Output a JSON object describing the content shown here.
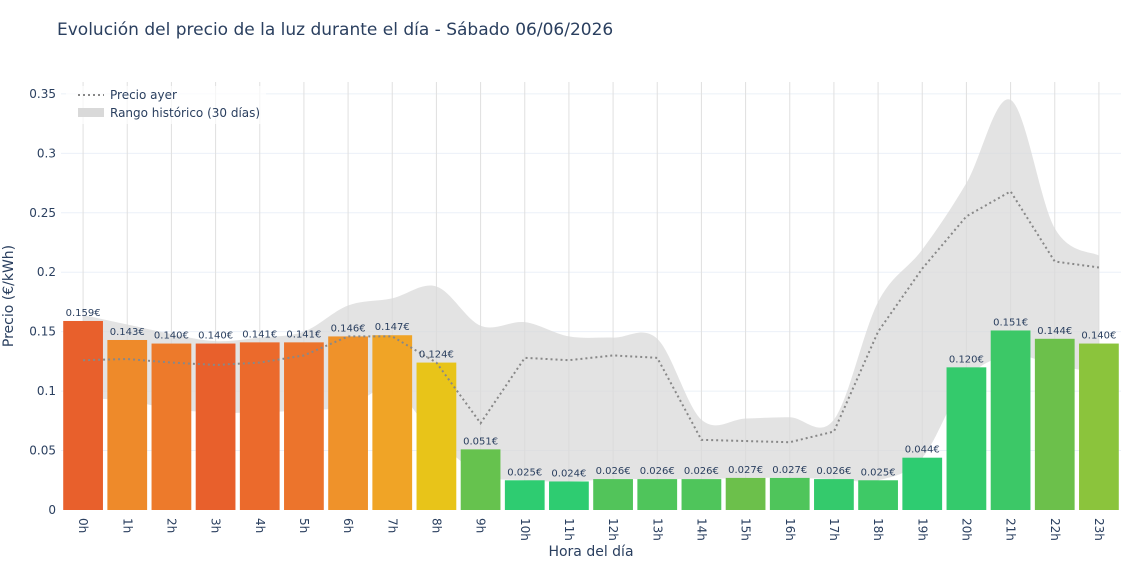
{
  "chart_data": {
    "type": "bar",
    "title": "Evolución del precio de la luz durante el día - Sábado 06/06/2026",
    "xlabel": "Hora del día",
    "ylabel": "Precio (€/kWh)",
    "ylim": [
      0,
      0.36
    ],
    "yticks": [
      0,
      0.05,
      0.1,
      0.15,
      0.2,
      0.25,
      0.3,
      0.35
    ],
    "ytick_labels": [
      "0",
      "0.05",
      "0.1",
      "0.15",
      "0.2",
      "0.25",
      "0.3",
      "0.35"
    ],
    "grid": true,
    "legend_position": "top-left",
    "categories": [
      "0h",
      "1h",
      "2h",
      "3h",
      "4h",
      "5h",
      "6h",
      "7h",
      "8h",
      "9h",
      "10h",
      "11h",
      "12h",
      "13h",
      "14h",
      "15h",
      "16h",
      "17h",
      "18h",
      "19h",
      "20h",
      "21h",
      "22h",
      "23h"
    ],
    "values": [
      0.159,
      0.143,
      0.14,
      0.14,
      0.141,
      0.141,
      0.146,
      0.147,
      0.124,
      0.051,
      0.025,
      0.024,
      0.026,
      0.026,
      0.026,
      0.027,
      0.027,
      0.026,
      0.025,
      0.044,
      0.12,
      0.151,
      0.144,
      0.14
    ],
    "value_labels": [
      "0.159€",
      "0.143€",
      "0.140€",
      "0.140€",
      "0.141€",
      "0.141€",
      "0.146€",
      "0.147€",
      "0.124€",
      "0.051€",
      "0.025€",
      "0.024€",
      "0.026€",
      "0.026€",
      "0.026€",
      "0.027€",
      "0.027€",
      "0.026€",
      "0.025€",
      "0.044€",
      "0.120€",
      "0.151€",
      "0.144€",
      "0.140€"
    ],
    "bar_colors": [
      "#e8602c",
      "#ee8a2a",
      "#ed7a2b",
      "#e8602c",
      "#eb6a2c",
      "#ec742c",
      "#ef922a",
      "#f0a426",
      "#e8c419",
      "#66c24e",
      "#2ecc71",
      "#2ecc71",
      "#52c45a",
      "#4fc55b",
      "#4fc55b",
      "#6cc04b",
      "#4fc55b",
      "#34ca6c",
      "#3ec966",
      "#2ecc71",
      "#34ca6c",
      "#3cc867",
      "#6cc04b",
      "#8bc43c"
    ],
    "series": [
      {
        "name": "Precio ayer",
        "style": "dotted",
        "color": "#888888",
        "values": [
          0.126,
          0.127,
          0.124,
          0.122,
          0.124,
          0.13,
          0.146,
          0.146,
          0.124,
          0.073,
          0.128,
          0.126,
          0.13,
          0.128,
          0.059,
          0.058,
          0.057,
          0.066,
          0.15,
          0.203,
          0.247,
          0.268,
          0.209,
          0.204
        ]
      },
      {
        "name": "Rango histórico (30 días)",
        "style": "band",
        "color": "#d9d9d9",
        "upper": [
          0.164,
          0.156,
          0.148,
          0.142,
          0.145,
          0.15,
          0.172,
          0.178,
          0.188,
          0.155,
          0.158,
          0.146,
          0.145,
          0.144,
          0.076,
          0.077,
          0.078,
          0.076,
          0.175,
          0.219,
          0.275,
          0.345,
          0.237,
          0.214
        ],
        "lower": [
          0.094,
          0.092,
          0.085,
          0.082,
          0.082,
          0.084,
          0.087,
          0.102,
          0.06,
          0.03,
          0.025,
          0.024,
          0.026,
          0.026,
          0.026,
          0.027,
          0.027,
          0.026,
          0.025,
          0.044,
          0.11,
          0.13,
          0.122,
          0.115
        ]
      }
    ]
  }
}
